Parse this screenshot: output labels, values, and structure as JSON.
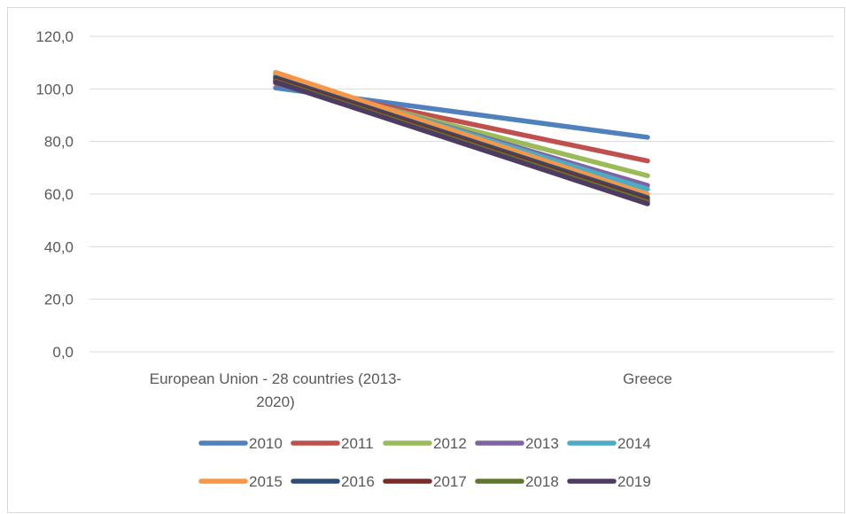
{
  "chart_data": {
    "type": "line",
    "categories": [
      [
        "European Union - 28 countries (2013-",
        "2020)"
      ],
      [
        "Greece"
      ]
    ],
    "ylim": [
      0,
      120
    ],
    "yticks": [
      "0,0",
      "20,0",
      "40,0",
      "60,0",
      "80,0",
      "100,0",
      "120,0"
    ],
    "ytick_values": [
      0,
      20,
      40,
      60,
      80,
      100,
      120
    ],
    "grid": true,
    "legend_position": "bottom",
    "series": [
      {
        "name": "2010",
        "color": "#4f81bd",
        "values": [
          100.4,
          81.6
        ]
      },
      {
        "name": "2011",
        "color": "#c0504d",
        "values": [
          102.2,
          72.6
        ]
      },
      {
        "name": "2012",
        "color": "#9bbb59",
        "values": [
          103.5,
          67.0
        ]
      },
      {
        "name": "2013",
        "color": "#8064a2",
        "values": [
          104.8,
          63.3
        ]
      },
      {
        "name": "2014",
        "color": "#4bacc6",
        "values": [
          105.5,
          61.9
        ]
      },
      {
        "name": "2015",
        "color": "#f79646",
        "values": [
          106.3,
          59.9
        ]
      },
      {
        "name": "2016",
        "color": "#2c4d75",
        "values": [
          104.3,
          58.6
        ]
      },
      {
        "name": "2017",
        "color": "#772c2a",
        "values": [
          103.6,
          57.7
        ]
      },
      {
        "name": "2018",
        "color": "#5f7530",
        "values": [
          103.0,
          57.0
        ]
      },
      {
        "name": "2019",
        "color": "#4d3b62",
        "values": [
          102.6,
          56.3
        ]
      }
    ]
  }
}
